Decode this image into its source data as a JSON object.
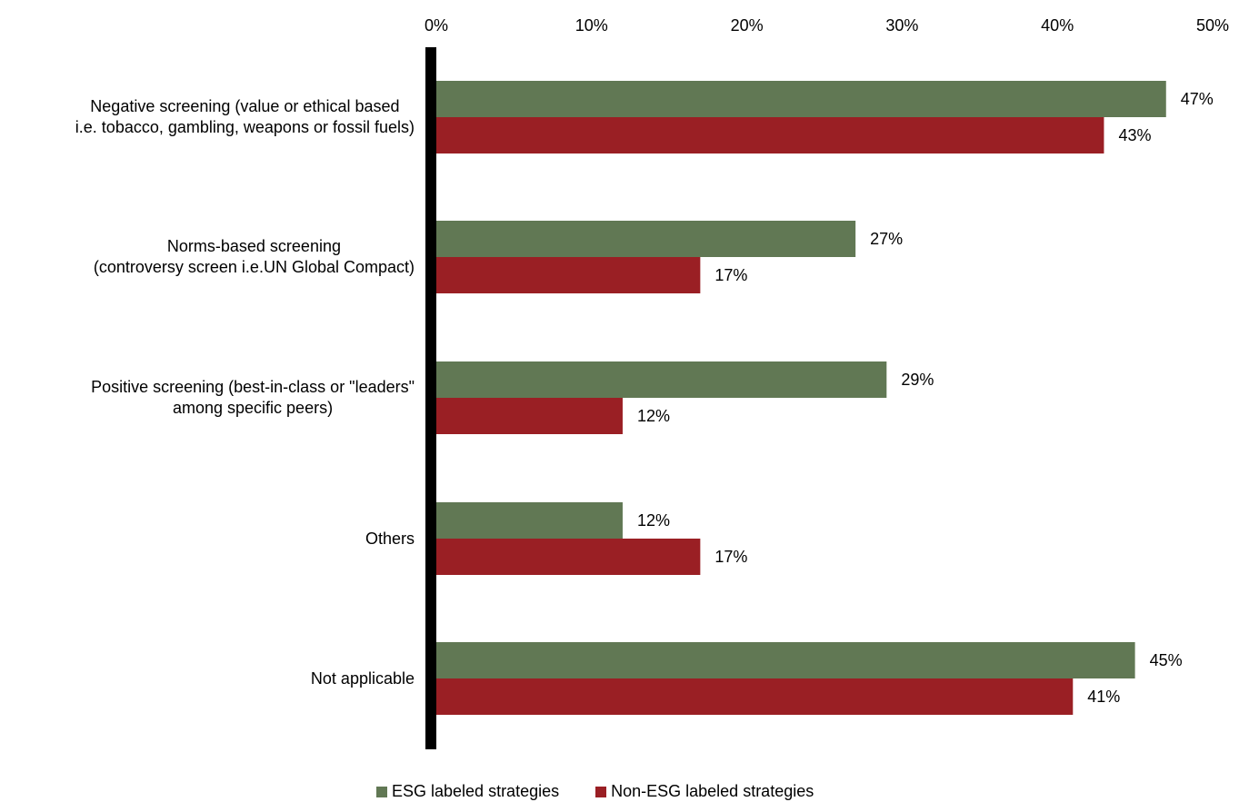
{
  "chart_data": {
    "type": "bar",
    "orientation": "horizontal",
    "categories": [
      "Negative screening (value or ethical based\ni.e. tobacco, gambling, weapons or fossil fuels)",
      "Norms-based screening\n(controversy screen i.e.UN Global Compact)",
      "Positive screening (best-in-class or \"leaders\"\namong specific peers)",
      "Others",
      "Not applicable"
    ],
    "series": [
      {
        "name": "ESG labeled strategies",
        "values": [
          47,
          27,
          29,
          12,
          45
        ],
        "labels": [
          "47%",
          "27%",
          "29%",
          "12%",
          "45%"
        ],
        "color": "#617854"
      },
      {
        "name": "Non-ESG labeled strategies",
        "values": [
          43,
          17,
          12,
          17,
          41
        ],
        "labels": [
          "43%",
          "17%",
          "12%",
          "17%",
          "41%"
        ],
        "color": "#9a1f24"
      }
    ],
    "x_ticks": [
      "0%",
      "10%",
      "20%",
      "30%",
      "40%",
      "50%"
    ],
    "xlim": [
      0,
      50
    ],
    "axis_position": "top",
    "grid": false,
    "legend_position": "bottom"
  }
}
